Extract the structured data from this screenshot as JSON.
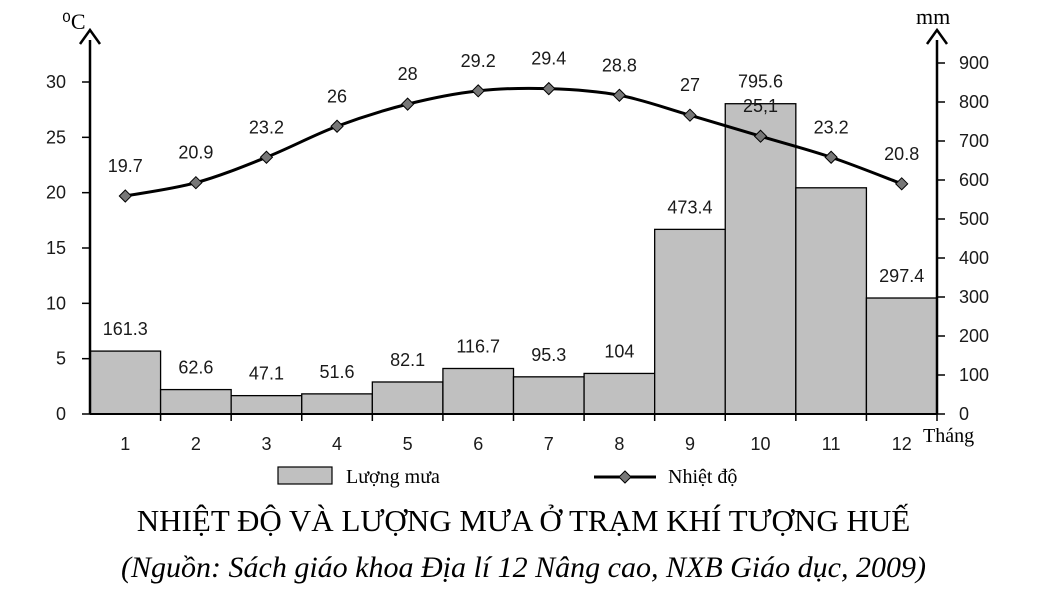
{
  "chart_data": {
    "type": "bar+line",
    "title": "NHIỆT ĐỘ VÀ LƯỢNG MƯA Ở TRẠM KHÍ TƯỢNG HUẾ",
    "source": "(Nguồn: Sách giáo khoa Địa lí 12 Nâng cao, NXB Giáo dục, 2009)",
    "xlabel": "Tháng",
    "categories": [
      "1",
      "2",
      "3",
      "4",
      "5",
      "6",
      "7",
      "8",
      "9",
      "10",
      "11",
      "12"
    ],
    "y_left": {
      "unit": "⁰C",
      "ylim": [
        0,
        30
      ],
      "ticks": [
        "0",
        "5",
        "10",
        "15",
        "20",
        "25",
        "30"
      ]
    },
    "y_right": {
      "unit": "mm",
      "ylim": [
        0,
        900
      ],
      "ticks": [
        "0",
        "100",
        "200",
        "300",
        "400",
        "500",
        "600",
        "700",
        "800",
        "900"
      ]
    },
    "series": [
      {
        "name": "Lượng mưa",
        "type": "bar",
        "axis": "right",
        "values": [
          161.3,
          62.6,
          47.1,
          51.6,
          82.1,
          116.7,
          95.3,
          104,
          473.4,
          795.6,
          580,
          297.4
        ],
        "labels": [
          "161.3",
          "62.6",
          "47.1",
          "51.6",
          "82.1",
          "116.7",
          "95.3",
          "104",
          "473.4",
          "795.6",
          "",
          "297.4"
        ],
        "color": "#c0c0c0"
      },
      {
        "name": "Nhiệt độ",
        "type": "line",
        "axis": "left",
        "values": [
          19.7,
          20.9,
          23.2,
          26,
          28,
          29.2,
          29.4,
          28.8,
          27,
          25.1,
          23.2,
          20.8
        ],
        "labels": [
          "19.7",
          "20.9",
          "23.2",
          "26",
          "28",
          "29.2",
          "29.4",
          "28.8",
          "27",
          "25,1",
          "23.2",
          "20.8"
        ],
        "color": "#000000"
      }
    ],
    "legend": "bottom",
    "grid": false
  }
}
